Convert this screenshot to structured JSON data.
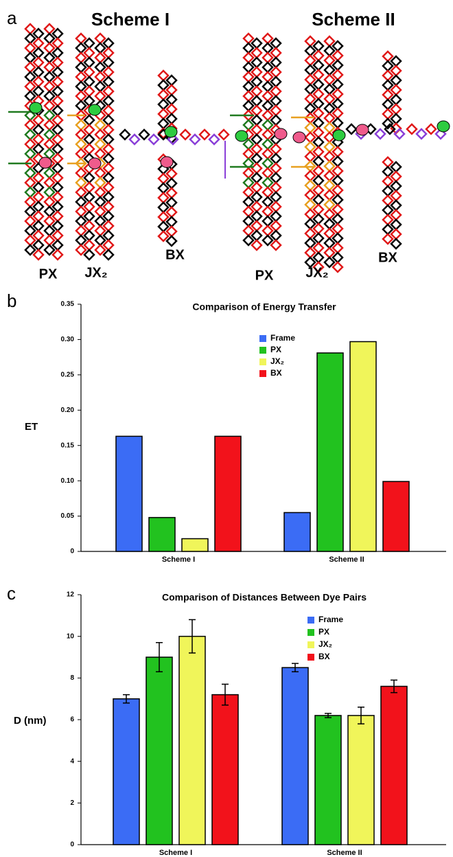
{
  "figure": {
    "panel_a": {
      "label": "a",
      "schemes": [
        "Scheme I",
        "Scheme II"
      ],
      "structures": [
        [
          "PX",
          "JX₂",
          "BX"
        ],
        [
          "PX",
          "JX₂",
          "BX"
        ]
      ]
    }
  },
  "chart_data": [
    {
      "type": "bar",
      "panel": "b",
      "title": "Comparison of Energy Transfer",
      "y_label": "ET",
      "categories": [
        "Scheme I",
        "Scheme II"
      ],
      "series": [
        {
          "name": "Frame",
          "color": "#3b6cf5",
          "values": [
            0.163,
            0.055
          ]
        },
        {
          "name": "PX",
          "color": "#22c21f",
          "values": [
            0.048,
            0.281
          ]
        },
        {
          "name": "JX₂",
          "color": "#f0f55a",
          "values": [
            0.018,
            0.297
          ]
        },
        {
          "name": "BX",
          "color": "#f2121b",
          "values": [
            0.163,
            0.099
          ]
        }
      ],
      "ylim": [
        0,
        0.35
      ],
      "yticks": [
        0,
        0.05,
        {
          "value": 0.1,
          "label": "0.10"
        },
        0.15,
        {
          "value": 0.2,
          "label": "0.20"
        },
        0.25,
        {
          "value": 0.3,
          "label": "0.30"
        },
        0.35
      ],
      "legend": "upper-center"
    },
    {
      "type": "bar",
      "panel": "c",
      "title": "Comparison of Distances Between Dye Pairs",
      "y_label": "D (nm)",
      "categories": [
        "Scheme I",
        "Scheme II"
      ],
      "series": [
        {
          "name": "Frame",
          "color": "#3b6cf5",
          "values": [
            7.0,
            8.5
          ],
          "errors": [
            0.2,
            0.2
          ]
        },
        {
          "name": "PX",
          "color": "#22c21f",
          "values": [
            9.0,
            6.2
          ],
          "errors": [
            0.7,
            0.1
          ]
        },
        {
          "name": "JX₂",
          "color": "#f0f55a",
          "values": [
            10.0,
            6.2
          ],
          "errors": [
            0.8,
            0.4
          ]
        },
        {
          "name": "BX",
          "color": "#f2121b",
          "values": [
            7.2,
            7.6
          ],
          "errors": [
            0.5,
            0.3
          ]
        }
      ],
      "ylim": [
        0,
        12
      ],
      "yticks": [
        0,
        2,
        4,
        6,
        8,
        10,
        12
      ],
      "legend": "upper-right"
    }
  ]
}
